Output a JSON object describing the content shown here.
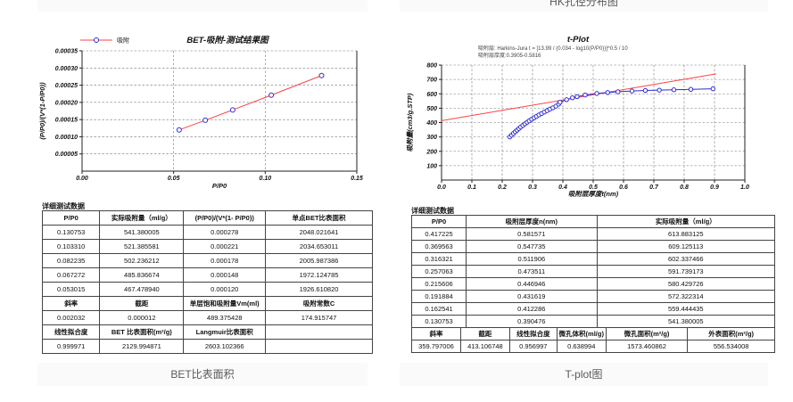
{
  "captions": {
    "top_left": "",
    "top_right": "HK孔径分布图",
    "bottom_left": "BET比表面积",
    "bottom_right": "T-plot图"
  },
  "sections": {
    "left_table_title": "详细测试数据",
    "right_table_title": "详细测试数据"
  },
  "colors": {
    "line_red": "#ff4141",
    "marker_blue": "#2b2bd5",
    "caption_bg": "#fafafa",
    "caption_text": "#595959"
  },
  "chart_data": [
    {
      "type": "line",
      "title": "BET-吸附-测试结果图",
      "xlabel": "P/P0",
      "ylabel": "(P/P0)/(V*(1-P/P0))",
      "xlim": [
        0,
        0.15
      ],
      "ylim": [
        0,
        0.00035
      ],
      "xticks": [
        0,
        0.05,
        0.1,
        0.15
      ],
      "yticks": [
        5e-05,
        0.0001,
        0.00015,
        0.0002,
        0.00025,
        0.0003,
        0.00035
      ],
      "x_decimals": 2,
      "y_decimals": 5,
      "grid": "dashed",
      "legend_position": "top-left",
      "legend": [
        {
          "label": "吸附",
          "line_color": "#ff4141",
          "marker_color": "#2b2bd5"
        }
      ],
      "series": [
        {
          "name": "吸附",
          "color": "#ff4141",
          "marker": "circle",
          "marker_color": "#2b2bd5",
          "points": [
            [
              0.053015,
              0.00012
            ],
            [
              0.067272,
              0.000148
            ],
            [
              0.082235,
              0.000178
            ],
            [
              0.10331,
              0.000221
            ],
            [
              0.130753,
              0.000278
            ]
          ]
        }
      ]
    },
    {
      "type": "line",
      "title": "t-Plot",
      "subtitle": [
        "吸附层: Harkins-Jura t = [13.99 / (0.034 - log10(P/P0))]^0.5 / 10",
        "吸附层厚度:0.3905-0.5816"
      ],
      "xlabel": "吸附层厚度t(nm)",
      "ylabel": "吸附量(cm3/g.STP)",
      "xlim": [
        0,
        1.0
      ],
      "ylim": [
        0,
        800
      ],
      "xticks": [
        0,
        0.1,
        0.2,
        0.3,
        0.4,
        0.5,
        0.6,
        0.7,
        0.8,
        0.9,
        1.0
      ],
      "yticks": [
        100,
        200,
        300,
        400,
        500,
        600,
        700,
        800
      ],
      "x_decimals": 1,
      "y_decimals": 0,
      "grid": "dashed",
      "fit_line": {
        "slope": 359.797006,
        "intercept": 413.106748
      },
      "series": [
        {
          "name": "t-plot拟合线",
          "color": "#ff4141",
          "marker": "none",
          "points": [
            [
              0,
              413.106748
            ],
            [
              0.905,
              738.72
            ]
          ]
        },
        {
          "name": "吸附",
          "color": "#2b2bd5",
          "marker": "circle",
          "marker_color": "#2b2bd5",
          "points": [
            [
              0.225,
              300
            ],
            [
              0.231,
              312
            ],
            [
              0.237,
              324
            ],
            [
              0.243,
              336
            ],
            [
              0.249,
              347
            ],
            [
              0.255,
              358
            ],
            [
              0.261,
              369
            ],
            [
              0.268,
              380
            ],
            [
              0.275,
              391
            ],
            [
              0.282,
              402
            ],
            [
              0.289,
              412
            ],
            [
              0.297,
              423
            ],
            [
              0.305,
              433
            ],
            [
              0.313,
              443
            ],
            [
              0.321,
              453
            ],
            [
              0.33,
              463
            ],
            [
              0.339,
              473
            ],
            [
              0.348,
              483
            ],
            [
              0.357,
              493
            ],
            [
              0.367,
              503
            ],
            [
              0.377,
              514
            ],
            [
              0.386,
              528
            ],
            [
              0.390476,
              541.380005
            ],
            [
              0.412286,
              559.444435
            ],
            [
              0.431619,
              572.322314
            ],
            [
              0.446946,
              580.429726
            ],
            [
              0.473511,
              591.739173
            ],
            [
              0.511906,
              602.337466
            ],
            [
              0.547735,
              609.125113
            ],
            [
              0.581571,
              613.883125
            ],
            [
              0.628,
              619.5
            ],
            [
              0.672,
              623
            ],
            [
              0.718,
              625.5
            ],
            [
              0.766,
              628
            ],
            [
              0.822,
              631
            ],
            [
              0.895,
              635
            ]
          ]
        }
      ]
    }
  ],
  "tables": {
    "bet": {
      "col_widths": [
        "17.4%",
        "25.4%",
        "24.8%",
        "32.4%"
      ],
      "rows": [
        {
          "header": true,
          "cells": [
            "P/P0",
            "实际吸附量（ml/g）",
            "(P/P0)/(V*(1- P/P0))",
            "单点BET比表面积"
          ]
        },
        {
          "header": false,
          "cells": [
            "0.130753",
            "541.380005",
            "0.000278",
            "2048.021641"
          ]
        },
        {
          "header": false,
          "cells": [
            "0.103310",
            "521.385581",
            "0.000221",
            "2034.653011"
          ]
        },
        {
          "header": false,
          "cells": [
            "0.082235",
            "502.236212",
            "0.000178",
            "2005.987386"
          ]
        },
        {
          "header": false,
          "cells": [
            "0.067272",
            "485.836674",
            "0.000148",
            "1972.124785"
          ]
        },
        {
          "header": false,
          "cells": [
            "0.053015",
            "467.478940",
            "0.000120",
            "1926.610820"
          ]
        },
        {
          "header": true,
          "cells": [
            "斜率",
            "截距",
            "单层饱和吸附量Vm(ml)",
            "吸附常数C"
          ]
        },
        {
          "header": false,
          "cells": [
            "0.002032",
            "0.000012",
            "489.375428",
            "174.915747"
          ]
        },
        {
          "header": true,
          "cells": [
            "线性拟合度",
            "BET 比表面积(m²/g)",
            "Langmuir比表面积",
            ""
          ]
        },
        {
          "header": false,
          "cells": [
            "0.999971",
            "2129.994871",
            "2603.102366",
            ""
          ]
        }
      ]
    },
    "tplot_main": {
      "col_widths": [
        "15%",
        "36%",
        "49%"
      ],
      "rows": [
        {
          "header": true,
          "cells": [
            "P/P0",
            "吸附层厚度n(nm)",
            "实际吸附量（ml/g）"
          ]
        },
        {
          "header": false,
          "cells": [
            "0.417225",
            "0.581571",
            "613.883125"
          ]
        },
        {
          "header": false,
          "cells": [
            "0.369563",
            "0.547735",
            "609.125113"
          ]
        },
        {
          "header": false,
          "cells": [
            "0.316321",
            "0.511906",
            "602.337466"
          ]
        },
        {
          "header": false,
          "cells": [
            "0.257063",
            "0.473511",
            "591.739173"
          ]
        },
        {
          "header": false,
          "cells": [
            "0.215606",
            "0.446946",
            "580.429726"
          ]
        },
        {
          "header": false,
          "cells": [
            "0.191884",
            "0.431619",
            "572.322314"
          ]
        },
        {
          "header": false,
          "cells": [
            "0.162541",
            "0.412286",
            "559.444435"
          ]
        },
        {
          "header": false,
          "cells": [
            "0.130753",
            "0.390476",
            "541.380005"
          ]
        }
      ]
    },
    "tplot_summary": {
      "col_widths": [
        "13.5%",
        "13.5%",
        "13%",
        "13.5%",
        "22.5%",
        "24%"
      ],
      "rows": [
        {
          "header": true,
          "cells": [
            "斜率",
            "截距",
            "线性拟合度",
            "微孔体积(ml/g)",
            "微孔面积(m²/g)",
            "外表面积(m²/g)"
          ]
        },
        {
          "header": false,
          "cells": [
            "359.797006",
            "413.106748",
            "0.956997",
            "0.638994",
            "1573.460862",
            "556.534008"
          ]
        }
      ]
    }
  }
}
